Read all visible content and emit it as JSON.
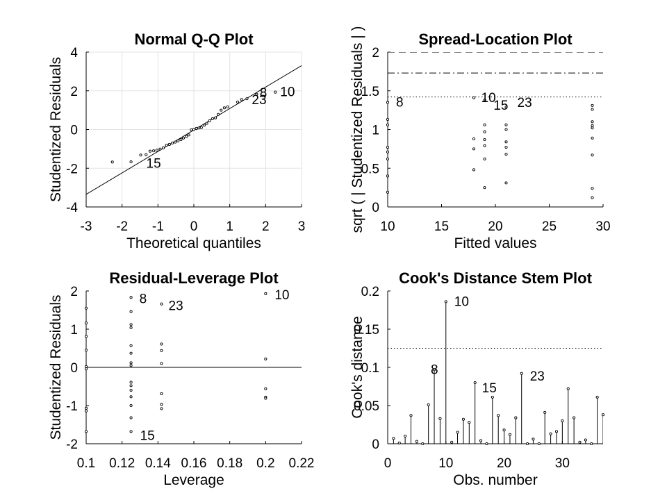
{
  "chart_data": [
    {
      "type": "scatter",
      "id": "qq",
      "title": "Normal Q-Q Plot",
      "xlabel": "Theoretical quantiles",
      "ylabel": "Studentized Residuals",
      "xlim": [
        -3,
        3
      ],
      "ylim": [
        -4,
        4
      ],
      "xticks": [
        -3,
        -2,
        -1,
        0,
        1,
        2,
        3
      ],
      "yticks": [
        -4,
        -2,
        0,
        2,
        4
      ],
      "grid": true,
      "reference_line": {
        "x": [
          -3,
          3
        ],
        "y": [
          -3.35,
          3.3
        ]
      },
      "points": [
        [
          -2.27,
          -1.68
        ],
        [
          -1.75,
          -1.67
        ],
        [
          -1.48,
          -1.32
        ],
        [
          -1.33,
          -1.3
        ],
        [
          -1.22,
          -1.12
        ],
        [
          -1.12,
          -1.1
        ],
        [
          -1.03,
          -1.07
        ],
        [
          -0.94,
          -1.01
        ],
        [
          -0.85,
          -0.95
        ],
        [
          -0.76,
          -0.81
        ],
        [
          -0.68,
          -0.77
        ],
        [
          -0.6,
          -0.7
        ],
        [
          -0.52,
          -0.65
        ],
        [
          -0.44,
          -0.59
        ],
        [
          -0.36,
          -0.52
        ],
        [
          -0.29,
          -0.44
        ],
        [
          -0.21,
          -0.36
        ],
        [
          -0.14,
          -0.28
        ],
        [
          -0.07,
          -0.02
        ],
        [
          0.0,
          0.0
        ],
        [
          0.07,
          0.05
        ],
        [
          0.14,
          0.08
        ],
        [
          0.21,
          0.1
        ],
        [
          0.29,
          0.22
        ],
        [
          0.36,
          0.32
        ],
        [
          0.44,
          0.45
        ],
        [
          0.52,
          0.56
        ],
        [
          0.6,
          0.6
        ],
        [
          0.68,
          0.78
        ],
        [
          0.76,
          1.0
        ],
        [
          0.85,
          1.12
        ],
        [
          0.94,
          1.17
        ],
        [
          1.22,
          1.42
        ],
        [
          1.33,
          1.55
        ],
        [
          1.48,
          1.59
        ],
        [
          1.75,
          1.82
        ],
        [
          2.27,
          1.93
        ]
      ],
      "labels": [
        {
          "text": "15",
          "x": -1.48,
          "y": -1.32
        },
        {
          "text": "23",
          "x": 1.75,
          "y": 1.82
        },
        {
          "text": "8",
          "x": 1.95,
          "y": 1.88
        },
        {
          "text": "10",
          "x": 2.27,
          "y": 1.93
        }
      ]
    },
    {
      "type": "scatter",
      "id": "sl",
      "title": "Spread-Location Plot",
      "xlabel": "Fitted values",
      "ylabel": "sqrt ( | Studentized Residuals | )",
      "xlim": [
        10,
        30
      ],
      "ylim": [
        0,
        2
      ],
      "xticks": [
        10,
        15,
        20,
        25,
        30
      ],
      "yticks": [
        0,
        0.5,
        1,
        1.5,
        2
      ],
      "grid": false,
      "hlines": [
        {
          "y": 2.0,
          "style": "dashed"
        },
        {
          "y": 1.73,
          "style": "dashdot"
        },
        {
          "y": 1.42,
          "style": "dotted"
        }
      ],
      "points": [
        [
          10,
          1.35
        ],
        [
          10,
          1.13
        ],
        [
          10,
          1.06
        ],
        [
          10,
          0.77
        ],
        [
          10,
          0.71
        ],
        [
          10,
          0.62
        ],
        [
          10,
          0.4
        ],
        [
          10,
          0.19
        ],
        [
          18,
          1.41
        ],
        [
          18,
          0.88
        ],
        [
          18,
          0.75
        ],
        [
          18,
          0.48
        ],
        [
          19,
          1.38
        ],
        [
          19,
          1.06
        ],
        [
          19,
          0.97
        ],
        [
          19,
          0.87
        ],
        [
          19,
          0.79
        ],
        [
          19,
          0.62
        ],
        [
          19,
          0.25
        ],
        [
          21,
          1.29
        ],
        [
          21,
          1.06
        ],
        [
          21,
          1.0
        ],
        [
          21,
          0.84
        ],
        [
          21,
          0.77
        ],
        [
          21,
          0.68
        ],
        [
          21,
          0.31
        ],
        [
          29,
          1.31
        ],
        [
          29,
          1.26
        ],
        [
          29,
          1.1
        ],
        [
          29,
          1.05
        ],
        [
          29,
          1.02
        ],
        [
          29,
          0.89
        ],
        [
          29,
          0.67
        ],
        [
          29,
          0.24
        ],
        [
          29,
          0.12
        ]
      ],
      "labels": [
        {
          "text": "8",
          "x": 10,
          "y": 1.35
        },
        {
          "text": "10",
          "x": 19,
          "y": 1.38
        },
        {
          "text": "15",
          "x": 19.7,
          "y": 1.29
        },
        {
          "text": "23",
          "x": 21,
          "y": 1.29
        }
      ]
    },
    {
      "type": "scatter",
      "id": "rl",
      "title": "Residual-Leverage Plot",
      "xlabel": "Leverage",
      "ylabel": "Studentized Residuals",
      "xlim": [
        0.1,
        0.22
      ],
      "ylim": [
        -2,
        2
      ],
      "xticks": [
        0.1,
        0.12,
        0.14,
        0.16,
        0.18,
        0.2,
        0.22
      ],
      "yticks": [
        -2,
        -1,
        0,
        1,
        2
      ],
      "grid": false,
      "hlines": [
        {
          "y": 0,
          "style": "solid"
        }
      ],
      "points": [
        [
          0.1,
          1.55
        ],
        [
          0.1,
          1.16
        ],
        [
          0.1,
          0.81
        ],
        [
          0.1,
          0.45
        ],
        [
          0.1,
          0.02
        ],
        [
          0.1,
          -0.04
        ],
        [
          0.1,
          -1.07
        ],
        [
          0.1,
          -1.14
        ],
        [
          0.1,
          -1.68
        ],
        [
          0.125,
          1.83
        ],
        [
          0.125,
          1.46
        ],
        [
          0.125,
          1.12
        ],
        [
          0.125,
          1.04
        ],
        [
          0.125,
          0.57
        ],
        [
          0.125,
          0.37
        ],
        [
          0.125,
          0.12
        ],
        [
          0.125,
          0.05
        ],
        [
          0.125,
          -0.39
        ],
        [
          0.125,
          -0.48
        ],
        [
          0.125,
          -0.6
        ],
        [
          0.125,
          -0.77
        ],
        [
          0.125,
          -1.0
        ],
        [
          0.125,
          -1.32
        ],
        [
          0.125,
          -1.68
        ],
        [
          0.142,
          1.66
        ],
        [
          0.142,
          0.61
        ],
        [
          0.142,
          0.44
        ],
        [
          0.142,
          0.1
        ],
        [
          0.142,
          -0.69
        ],
        [
          0.142,
          -0.97
        ],
        [
          0.142,
          -1.08
        ],
        [
          0.2,
          1.93
        ],
        [
          0.2,
          0.22
        ],
        [
          0.2,
          -0.56
        ],
        [
          0.2,
          -0.78
        ],
        [
          0.2,
          -0.81
        ]
      ],
      "labels": [
        {
          "text": "8",
          "x": 0.125,
          "y": 1.83
        },
        {
          "text": "23",
          "x": 0.142,
          "y": 1.66
        },
        {
          "text": "10",
          "x": 0.2,
          "y": 1.93
        },
        {
          "text": "15",
          "x": 0.125,
          "y": -1.68
        }
      ]
    },
    {
      "type": "stem",
      "id": "cook",
      "title": "Cook's Distance Stem Plot",
      "xlabel": "Obs. number",
      "ylabel": "Cook's distance",
      "xlim": [
        0,
        37
      ],
      "ylim": [
        0,
        0.2
      ],
      "xticks": [
        0,
        10,
        20,
        30
      ],
      "yticks": [
        0,
        0.05,
        0.1,
        0.15,
        0.2
      ],
      "grid": false,
      "hlines": [
        {
          "y": 0.125,
          "style": "dotted"
        }
      ],
      "x": [
        1,
        2,
        3,
        4,
        5,
        6,
        7,
        8,
        9,
        10,
        11,
        12,
        13,
        14,
        15,
        16,
        17,
        18,
        19,
        20,
        21,
        22,
        23,
        24,
        25,
        26,
        27,
        28,
        29,
        30,
        31,
        32,
        33,
        34,
        35,
        36,
        37
      ],
      "values": [
        0.007,
        0.001,
        0.01,
        0.037,
        0.003,
        0.0,
        0.051,
        0.097,
        0.033,
        0.186,
        0.002,
        0.015,
        0.032,
        0.028,
        0.08,
        0.004,
        0.0,
        0.061,
        0.037,
        0.018,
        0.012,
        0.034,
        0.092,
        0.0,
        0.006,
        0.0,
        0.041,
        0.013,
        0.016,
        0.03,
        0.072,
        0.034,
        0.002,
        0.005,
        0.0,
        0.061,
        0.038
      ],
      "labels": [
        {
          "text": "10",
          "x": 10,
          "y": 0.186
        },
        {
          "text": "8",
          "x": 8,
          "y": 0.097
        },
        {
          "text": "15",
          "x": 15,
          "y": 0.08
        },
        {
          "text": "23",
          "x": 23,
          "y": 0.092
        }
      ]
    }
  ]
}
